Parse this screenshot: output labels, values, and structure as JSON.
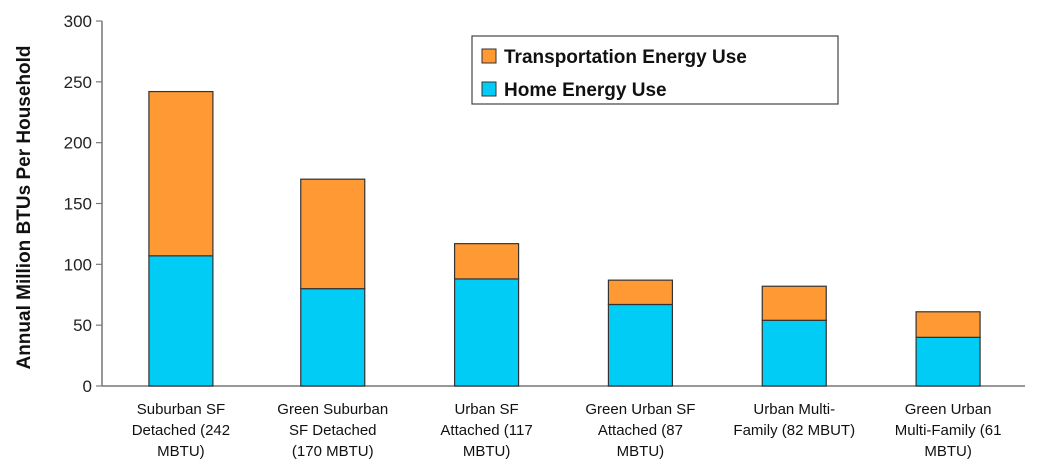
{
  "chart_data": {
    "type": "bar",
    "stacked": true,
    "title": "",
    "xlabel": "",
    "ylabel": "Annual Million BTUs Per Household",
    "ylim": [
      0,
      300
    ],
    "yticks": [
      0,
      50,
      100,
      150,
      200,
      250,
      300
    ],
    "legend_position": "top-right",
    "grid": false,
    "categories": [
      [
        "Suburban SF",
        "Detached (242",
        "MBTU)"
      ],
      [
        "Green Suburban",
        "SF Detached",
        "(170 MBTU)"
      ],
      [
        "Urban SF",
        "Attached (117",
        "MBTU)"
      ],
      [
        "Green Urban SF",
        "Attached (87",
        "MBTU)"
      ],
      [
        "Urban Multi-",
        "Family (82 MBUT)"
      ],
      [
        "Green Urban",
        "Multi-Family (61",
        "MBTU)"
      ]
    ],
    "series": [
      {
        "name": "Home Energy Use",
        "color": "#00ccf5",
        "values": [
          107,
          80,
          88,
          67,
          54,
          40
        ]
      },
      {
        "name": "Transportation Energy Use",
        "color": "#ff9933",
        "values": [
          135,
          90,
          29,
          20,
          28,
          21
        ]
      }
    ],
    "legend_order": [
      "Transportation Energy Use",
      "Home Energy Use"
    ]
  }
}
